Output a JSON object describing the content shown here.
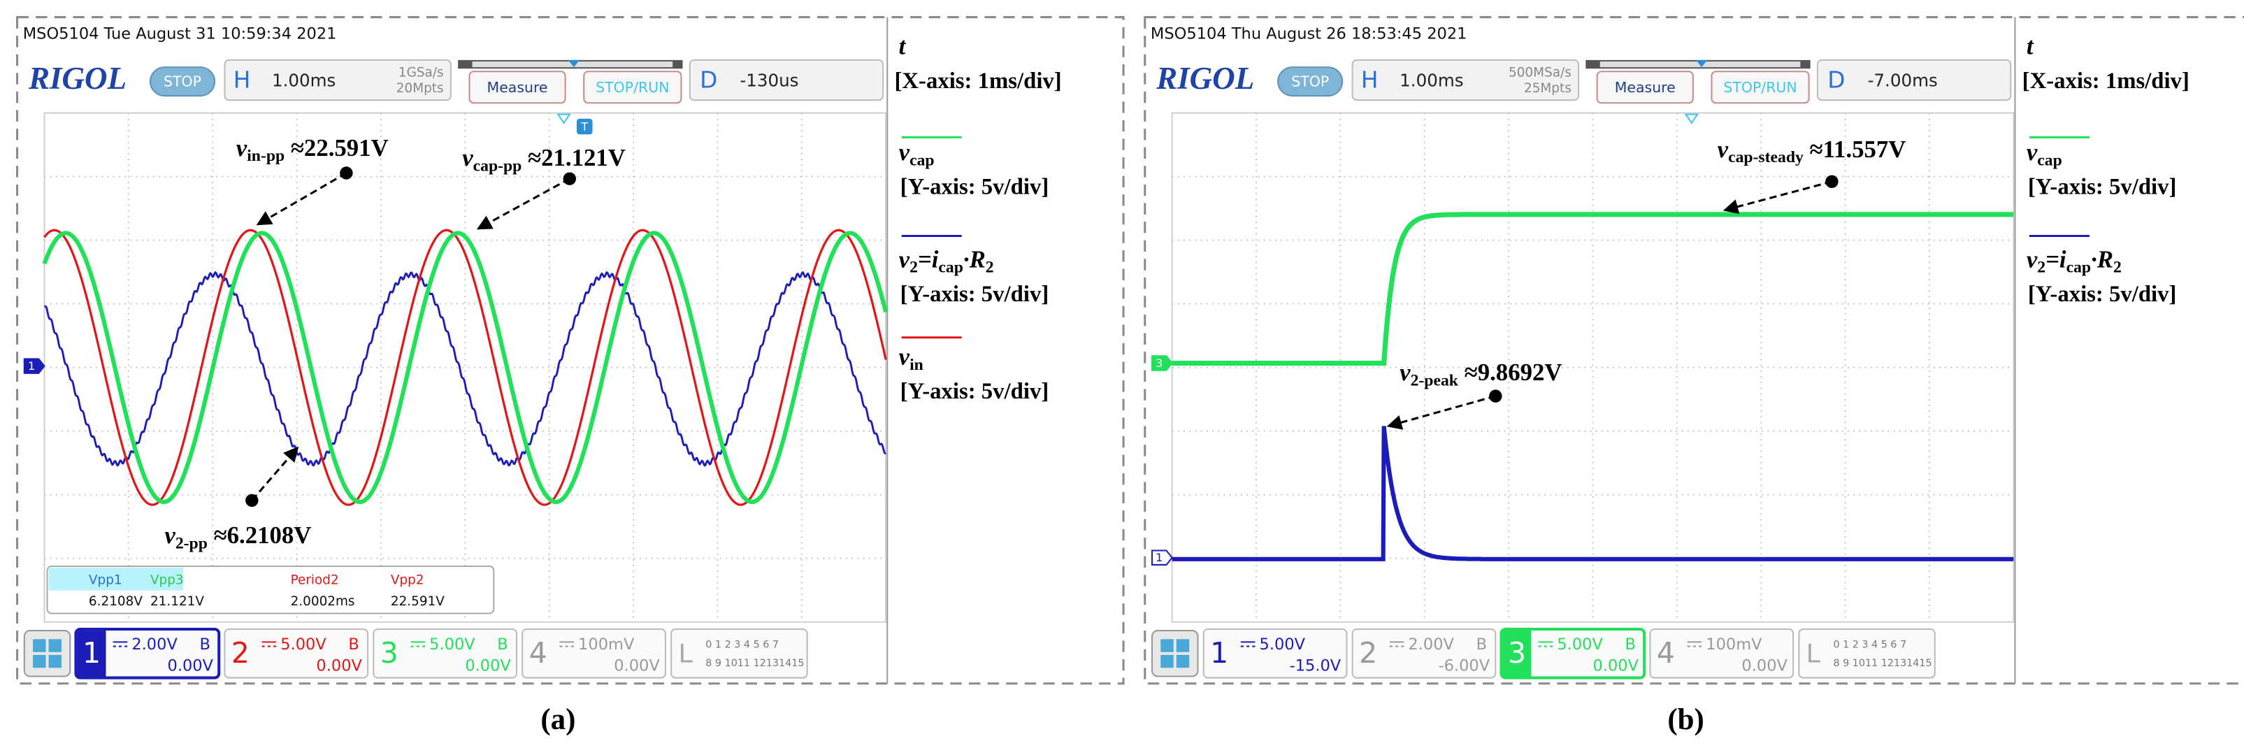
{
  "panels": [
    {
      "status": "MSO5104  Tue August 31 10:59:34 2021",
      "brand": "RIGOL",
      "run_state": "STOP",
      "horizontal": {
        "key": "H",
        "scale": "1.00ms",
        "sample_rate": "1GSa/s",
        "memory": "20Mpts"
      },
      "buttons": [
        "Measure",
        "STOP/RUN"
      ],
      "delay": {
        "key": "D",
        "value": "-130us"
      },
      "markers": [
        "1"
      ],
      "trigger": "T",
      "measurements": [
        {
          "name": "Vpp1",
          "value": "6.2108V"
        },
        {
          "name": "Vpp3",
          "value": "21.121V"
        },
        {
          "name": "Period2",
          "value": "2.0002ms"
        },
        {
          "name": "Vpp2",
          "value": "22.591V"
        }
      ],
      "channels": [
        {
          "number": "1",
          "scale": "2.00V",
          "bw": "B",
          "offset": "0.00V"
        },
        {
          "number": "2",
          "scale": "5.00V",
          "bw": "B",
          "offset": "0.00V"
        },
        {
          "number": "3",
          "scale": "5.00V",
          "bw": "B",
          "offset": "0.00V"
        },
        {
          "number": "4",
          "scale": "100mV",
          "offset": "0.00V"
        }
      ],
      "logic": {
        "key": "L",
        "row1": "0 1 2 3  4 5 6 7",
        "row2": "8 9 1011 12131415"
      },
      "legend": [
        {
          "symbol": [
            "t"
          ],
          "axis": "[X-axis: 1ms/div]"
        },
        {
          "symbol": [
            "v",
            "cap"
          ],
          "axis": "[Y-axis: 5v/div]"
        },
        {
          "symbol": [
            "v",
            "2",
            "=i",
            "cap",
            "·R",
            "2"
          ],
          "axis": "[Y-axis: 5v/div]"
        },
        {
          "symbol": [
            "v",
            "in"
          ],
          "axis": "[Y-axis: 5v/div]"
        }
      ],
      "annotations": [
        {
          "parts": [
            "v",
            "in-pp",
            " ≈22.591V"
          ]
        },
        {
          "parts": [
            "v",
            "cap-pp",
            " ≈21.121V"
          ]
        },
        {
          "parts": [
            "v",
            "2-pp",
            " ≈6.2108V"
          ]
        }
      ],
      "caption": "(a)"
    },
    {
      "status": "MSO5104  Thu August 26 18:53:45 2021",
      "brand": "RIGOL",
      "run_state": "STOP",
      "horizontal": {
        "key": "H",
        "scale": "1.00ms",
        "sample_rate": "500MSa/s",
        "memory": "25Mpts"
      },
      "buttons": [
        "Measure",
        "STOP/RUN"
      ],
      "delay": {
        "key": "D",
        "value": "-7.00ms"
      },
      "markers": [
        "3",
        "1"
      ],
      "channels": [
        {
          "number": "1",
          "scale": "5.00V",
          "offset": "-15.0V"
        },
        {
          "number": "2",
          "scale": "2.00V",
          "bw": "B",
          "offset": "-6.00V"
        },
        {
          "number": "3",
          "scale": "5.00V",
          "bw": "B",
          "offset": "0.00V"
        },
        {
          "number": "4",
          "scale": "100mV",
          "offset": "0.00V"
        }
      ],
      "logic": {
        "key": "L",
        "row1": "0 1 2 3  4 5 6 7",
        "row2": "8 9 1011 12131415"
      },
      "legend": [
        {
          "symbol": [
            "t"
          ],
          "axis": "[X-axis: 1ms/div]"
        },
        {
          "symbol": [
            "v",
            "cap"
          ],
          "axis": "[Y-axis: 5v/div]"
        },
        {
          "symbol": [
            "v",
            "2",
            "=i",
            "cap",
            "·R",
            "2"
          ],
          "axis": "[Y-axis: 5v/div]"
        }
      ],
      "annotations": [
        {
          "parts": [
            "v",
            "cap-steady",
            " ≈11.557V"
          ]
        },
        {
          "parts": [
            "v",
            "2-peak",
            " ≈9.8692V"
          ]
        }
      ],
      "caption": "(b)"
    }
  ]
}
